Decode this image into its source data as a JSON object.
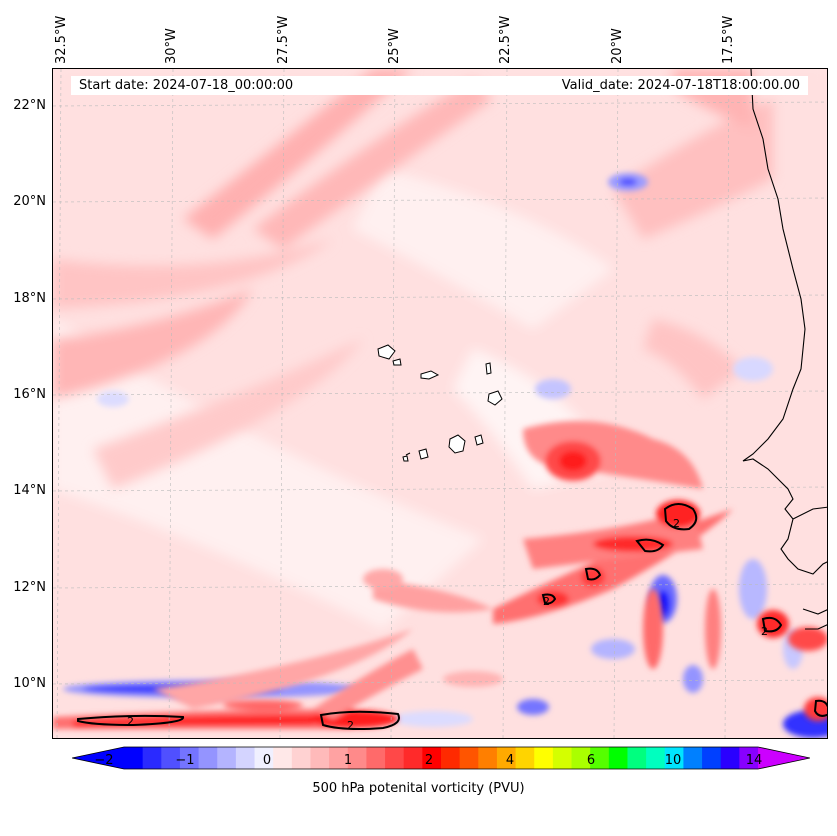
{
  "map": {
    "start_date": "Start date: 2024-07-18_00:00:00",
    "valid_date": "Valid_date: 2024-07-18T18:00:00.00",
    "longitude_labels": [
      "32.5°W",
      "30°W",
      "27.5°W",
      "25°W",
      "22.5°W",
      "20°W",
      "17.5°W"
    ],
    "latitude_labels": [
      "22°N",
      "20°N",
      "18°N",
      "16°N",
      "14°N",
      "12°N",
      "10°N"
    ],
    "contour_label": "2"
  },
  "colorbar": {
    "title": "500 hPa potenital vorticity (PVU)",
    "tick_labels": [
      "−2",
      "−1",
      "0",
      "1",
      "2",
      "4",
      "6",
      "10",
      "14"
    ],
    "colors": [
      "#0000ff",
      "#2a2aff",
      "#5050ff",
      "#7474ff",
      "#9494ff",
      "#b4b4ff",
      "#d4d4ff",
      "#f0f0ff",
      "#ffe8e8",
      "#ffd2d2",
      "#ffbaba",
      "#ffa2a2",
      "#ff8a8a",
      "#ff6a6a",
      "#ff4848",
      "#ff2a2a",
      "#ff0000",
      "#ff2a00",
      "#ff5500",
      "#ff7f00",
      "#ffaa00",
      "#ffd400",
      "#ffff00",
      "#d4ff00",
      "#aaff00",
      "#55ff00",
      "#00ff00",
      "#00ff7f",
      "#00ffbf",
      "#00e5ff",
      "#0080ff",
      "#0040ff",
      "#2a00ff",
      "#8800ff"
    ],
    "extend_min_color": "#0000ff",
    "extend_max_color": "#cc00ff"
  }
}
